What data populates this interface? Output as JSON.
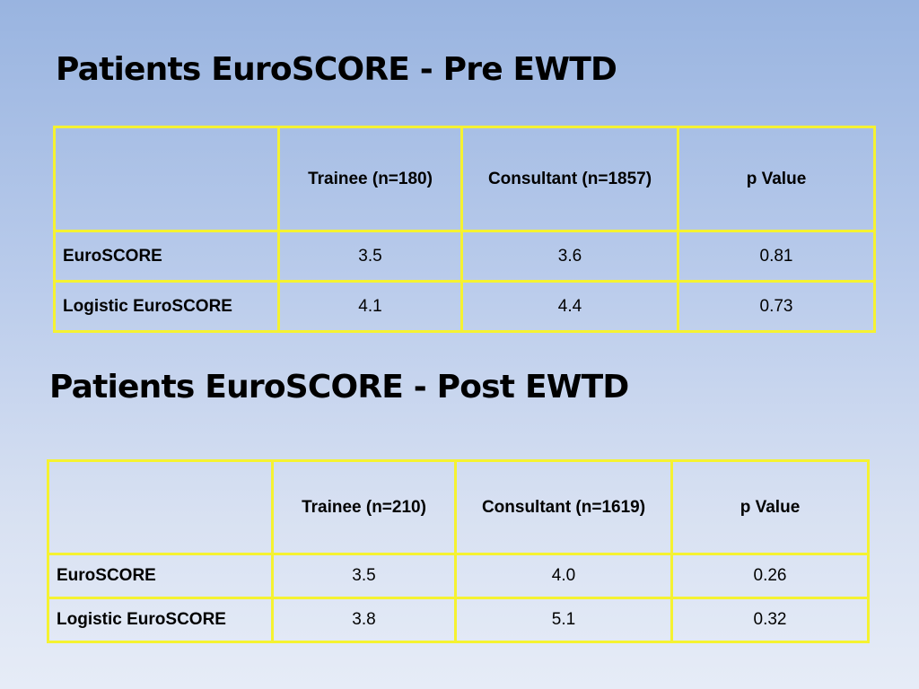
{
  "sections": [
    {
      "title": "Patients EuroSCORE - Pre EWTD",
      "headers": [
        "",
        "Trainee (n=180)",
        "Consultant (n=1857)",
        "p Value"
      ],
      "rows": [
        {
          "label": "EuroSCORE",
          "values": [
            "3.5",
            "3.6",
            "0.81"
          ]
        },
        {
          "label": "Logistic EuroSCORE",
          "values": [
            "4.1",
            "4.4",
            "0.73"
          ]
        }
      ]
    },
    {
      "title": "Patients EuroSCORE - Post EWTD",
      "headers": [
        "",
        "Trainee (n=210)",
        "Consultant (n=1619)",
        "p Value"
      ],
      "rows": [
        {
          "label": "EuroSCORE",
          "values": [
            "3.5",
            "4.0",
            "0.26"
          ]
        },
        {
          "label": "Logistic EuroSCORE",
          "values": [
            "3.8",
            "5.1",
            "0.32"
          ]
        }
      ]
    }
  ],
  "colors": {
    "table_border": "#f5f231",
    "background_top": "#99b4e0",
    "background_bottom": "#e6ecf7"
  }
}
